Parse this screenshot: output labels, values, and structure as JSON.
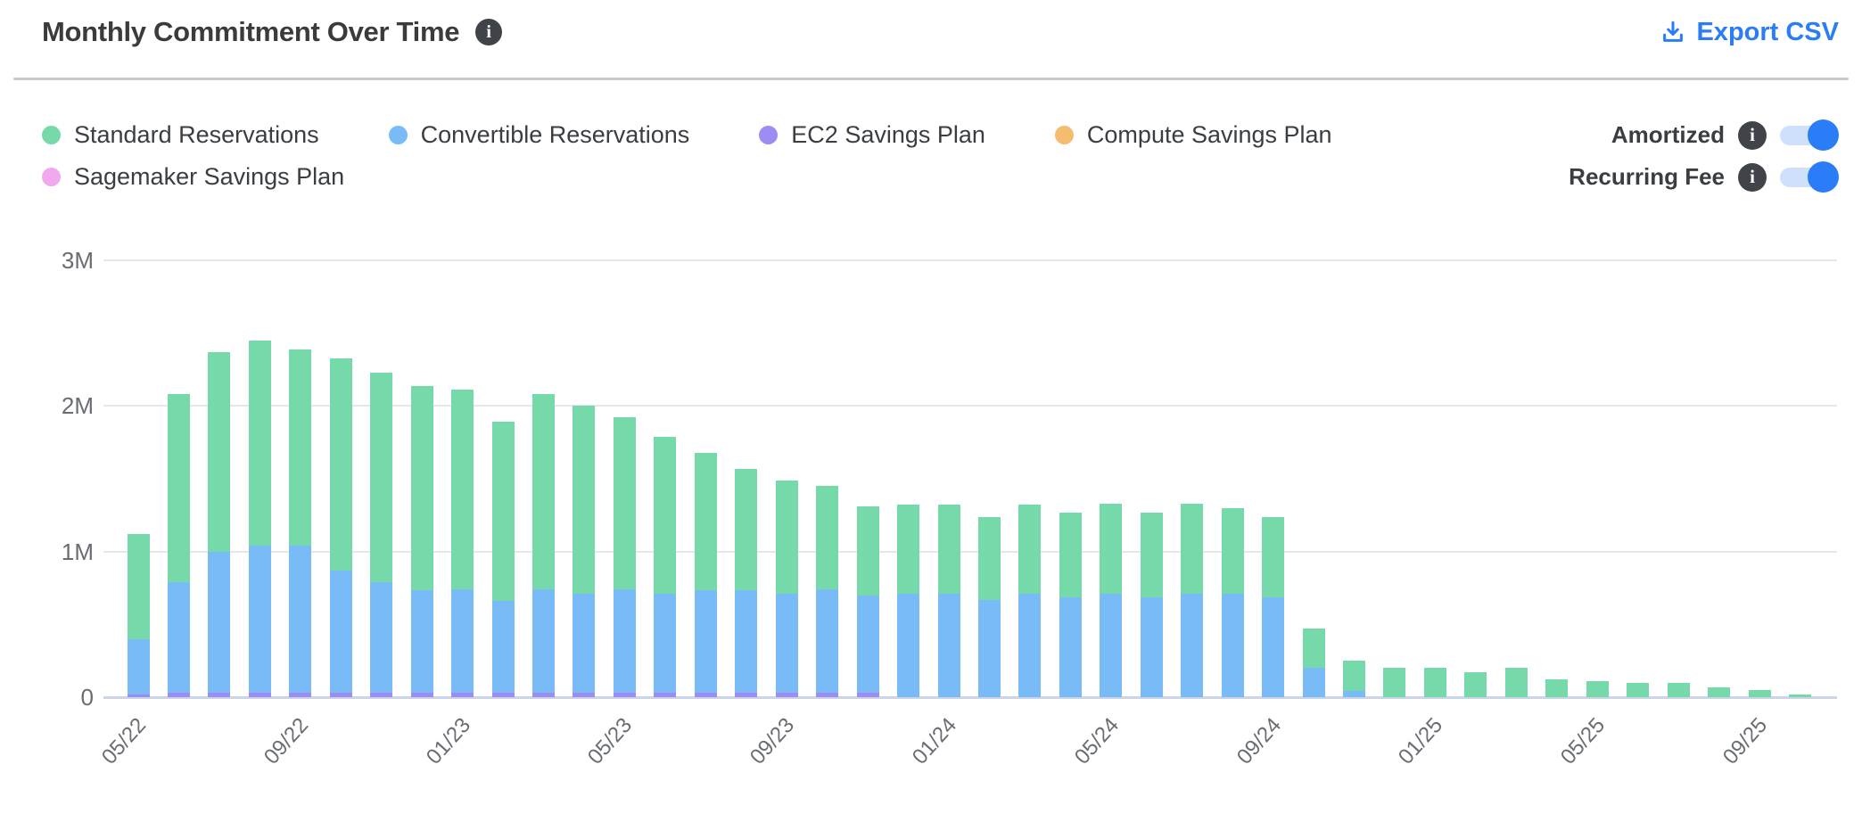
{
  "header": {
    "title": "Monthly Commitment Over Time",
    "export_label": "Export CSV",
    "info_icon": "info-circle"
  },
  "controls": {
    "toggles": [
      {
        "label": "Amortized",
        "state": "on"
      },
      {
        "label": "Recurring Fee",
        "state": "on"
      }
    ],
    "toggle_on_color": "#2b7cf7",
    "toggle_track_color": "#cfe0fa"
  },
  "legend": {
    "items": [
      {
        "label": "Standard Reservations",
        "color": "#76d9a9",
        "row": 1
      },
      {
        "label": "Convertible Reservations",
        "color": "#79bbf7",
        "row": 1
      },
      {
        "label": "EC2 Savings Plan",
        "color": "#9d8cf2",
        "row": 1
      },
      {
        "label": "Compute Savings Plan",
        "color": "#f4bc6e",
        "row": 1
      },
      {
        "label": "Sagemaker Savings Plan",
        "color": "#efa9ec",
        "row": 2
      }
    ]
  },
  "chart_data": {
    "type": "bar",
    "stacked": true,
    "title": "Monthly Commitment Over Time",
    "values_unit": "millions",
    "ylim": [
      0,
      3
    ],
    "grid": "horizontal",
    "legend_position": "top-left",
    "x_tick_every": 4,
    "yticks": [
      {
        "label": "0",
        "value": 0
      },
      {
        "label": "1M",
        "value": 1
      },
      {
        "label": "2M",
        "value": 2
      },
      {
        "label": "3M",
        "value": 3
      }
    ],
    "x": [
      "05/22",
      "06/22",
      "07/22",
      "08/22",
      "09/22",
      "10/22",
      "11/22",
      "12/22",
      "01/23",
      "02/23",
      "03/23",
      "04/23",
      "05/23",
      "06/23",
      "07/23",
      "08/23",
      "09/23",
      "10/23",
      "11/23",
      "12/23",
      "01/24",
      "02/24",
      "03/24",
      "04/24",
      "05/24",
      "06/24",
      "07/24",
      "08/24",
      "09/24",
      "10/24",
      "11/24",
      "12/24",
      "01/25",
      "02/25",
      "03/25",
      "04/25",
      "05/25",
      "06/25",
      "07/25",
      "08/25",
      "09/25",
      "10/25"
    ],
    "series": [
      {
        "name": "EC2 Savings Plan",
        "color": "#9d8cf2",
        "values": [
          0.02,
          0.03,
          0.03,
          0.03,
          0.03,
          0.03,
          0.03,
          0.03,
          0.03,
          0.03,
          0.03,
          0.03,
          0.03,
          0.03,
          0.03,
          0.03,
          0.03,
          0.03,
          0.03,
          0,
          0,
          0,
          0,
          0,
          0,
          0,
          0,
          0,
          0,
          0,
          0,
          0,
          0,
          0,
          0,
          0,
          0,
          0,
          0,
          0,
          0,
          0
        ]
      },
      {
        "name": "Convertible Reservations",
        "color": "#79bbf7",
        "values": [
          0.38,
          0.76,
          0.97,
          1.01,
          1.01,
          0.84,
          0.76,
          0.71,
          0.71,
          0.63,
          0.71,
          0.68,
          0.71,
          0.68,
          0.71,
          0.71,
          0.68,
          0.71,
          0.67,
          0.71,
          0.71,
          0.67,
          0.71,
          0.69,
          0.71,
          0.69,
          0.71,
          0.71,
          0.69,
          0.2,
          0.04,
          0,
          0,
          0,
          0,
          0,
          0,
          0,
          0,
          0,
          0,
          0
        ]
      },
      {
        "name": "Standard Reservations",
        "color": "#76d9a9",
        "values": [
          0.72,
          1.29,
          1.37,
          1.41,
          1.35,
          1.46,
          1.44,
          1.4,
          1.37,
          1.23,
          1.34,
          1.29,
          1.18,
          1.08,
          0.94,
          0.83,
          0.78,
          0.71,
          0.61,
          0.61,
          0.61,
          0.57,
          0.61,
          0.58,
          0.62,
          0.58,
          0.62,
          0.59,
          0.55,
          0.27,
          0.21,
          0.2,
          0.2,
          0.17,
          0.2,
          0.12,
          0.11,
          0.1,
          0.1,
          0.07,
          0.05,
          0.02
        ]
      },
      {
        "name": "Compute Savings Plan",
        "color": "#f4bc6e",
        "values": [
          0,
          0,
          0,
          0,
          0,
          0,
          0,
          0,
          0,
          0,
          0,
          0,
          0,
          0,
          0,
          0,
          0,
          0,
          0,
          0,
          0,
          0,
          0,
          0,
          0,
          0,
          0,
          0,
          0,
          0,
          0,
          0,
          0,
          0,
          0,
          0,
          0,
          0,
          0,
          0,
          0,
          0
        ]
      },
      {
        "name": "Sagemaker Savings Plan",
        "color": "#efa9ec",
        "values": [
          0,
          0,
          0,
          0,
          0,
          0,
          0,
          0,
          0,
          0,
          0,
          0,
          0,
          0,
          0,
          0,
          0,
          0,
          0,
          0,
          0,
          0,
          0,
          0,
          0,
          0,
          0,
          0,
          0,
          0,
          0,
          0,
          0,
          0,
          0,
          0,
          0,
          0,
          0,
          0,
          0,
          0
        ]
      }
    ]
  }
}
